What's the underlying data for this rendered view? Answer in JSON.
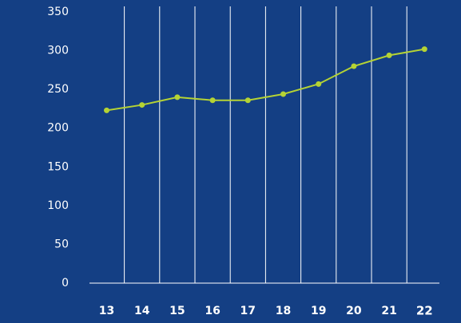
{
  "chart_data": {
    "type": "line",
    "categories": [
      "13",
      "14",
      "15",
      "16",
      "17",
      "18",
      "19",
      "20",
      "21",
      "22"
    ],
    "values": [
      223,
      230,
      240,
      236,
      236,
      244,
      257,
      280,
      294,
      302
    ],
    "color": "#b5d334",
    "ylim": [
      0,
      350
    ],
    "yticks": [
      0,
      50,
      100,
      150,
      200,
      250,
      300,
      350
    ]
  }
}
